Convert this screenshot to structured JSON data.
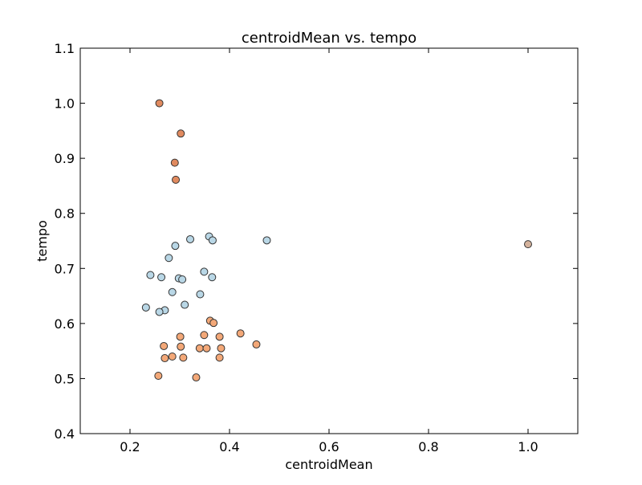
{
  "chart_data": {
    "type": "scatter",
    "title": "centroidMean vs. tempo",
    "xlabel": "centroidMean",
    "ylabel": "tempo",
    "xlim": [
      0.1,
      1.1
    ],
    "ylim": [
      0.4,
      1.1
    ],
    "xticks": [
      0.2,
      0.4,
      0.6,
      0.8,
      1.0
    ],
    "xtick_labels": [
      "0.2",
      "0.4",
      "0.6",
      "0.8",
      "1.0"
    ],
    "yticks": [
      0.4,
      0.5,
      0.6,
      0.7,
      0.8,
      0.9,
      1.0,
      1.1
    ],
    "ytick_labels": [
      "0.4",
      "0.5",
      "0.6",
      "0.7",
      "0.8",
      "0.9",
      "1.0",
      "1.1"
    ],
    "grid": false,
    "legend": "none",
    "series": [
      {
        "color": "#e08a5f",
        "points": [
          {
            "x": 0.259,
            "y": 1.0
          },
          {
            "x": 0.302,
            "y": 0.945
          },
          {
            "x": 0.29,
            "y": 0.892
          },
          {
            "x": 0.292,
            "y": 0.861
          }
        ]
      },
      {
        "color": "#b9d7e6",
        "points": [
          {
            "x": 0.321,
            "y": 0.753
          },
          {
            "x": 0.359,
            "y": 0.758
          },
          {
            "x": 0.366,
            "y": 0.751
          },
          {
            "x": 0.475,
            "y": 0.751
          },
          {
            "x": 0.291,
            "y": 0.741
          },
          {
            "x": 0.278,
            "y": 0.719
          },
          {
            "x": 0.349,
            "y": 0.694
          },
          {
            "x": 0.241,
            "y": 0.688
          },
          {
            "x": 0.263,
            "y": 0.684
          },
          {
            "x": 0.365,
            "y": 0.684
          },
          {
            "x": 0.298,
            "y": 0.682
          },
          {
            "x": 0.305,
            "y": 0.68
          },
          {
            "x": 0.285,
            "y": 0.657
          },
          {
            "x": 0.341,
            "y": 0.653
          },
          {
            "x": 0.31,
            "y": 0.634
          },
          {
            "x": 0.232,
            "y": 0.629
          },
          {
            "x": 0.27,
            "y": 0.624
          },
          {
            "x": 0.259,
            "y": 0.621
          }
        ]
      },
      {
        "color": "#f3a878",
        "points": [
          {
            "x": 0.361,
            "y": 0.605
          },
          {
            "x": 0.368,
            "y": 0.601
          },
          {
            "x": 0.422,
            "y": 0.582
          },
          {
            "x": 0.349,
            "y": 0.579
          },
          {
            "x": 0.301,
            "y": 0.576
          },
          {
            "x": 0.38,
            "y": 0.576
          },
          {
            "x": 0.454,
            "y": 0.562
          },
          {
            "x": 0.268,
            "y": 0.559
          },
          {
            "x": 0.302,
            "y": 0.558
          },
          {
            "x": 0.34,
            "y": 0.555
          },
          {
            "x": 0.354,
            "y": 0.555
          },
          {
            "x": 0.383,
            "y": 0.555
          },
          {
            "x": 0.285,
            "y": 0.54
          },
          {
            "x": 0.27,
            "y": 0.537
          },
          {
            "x": 0.307,
            "y": 0.538
          },
          {
            "x": 0.38,
            "y": 0.538
          },
          {
            "x": 0.257,
            "y": 0.505
          },
          {
            "x": 0.333,
            "y": 0.502
          }
        ]
      },
      {
        "color": "#d4b29c",
        "points": [
          {
            "x": 1.0,
            "y": 0.744
          }
        ]
      }
    ]
  }
}
